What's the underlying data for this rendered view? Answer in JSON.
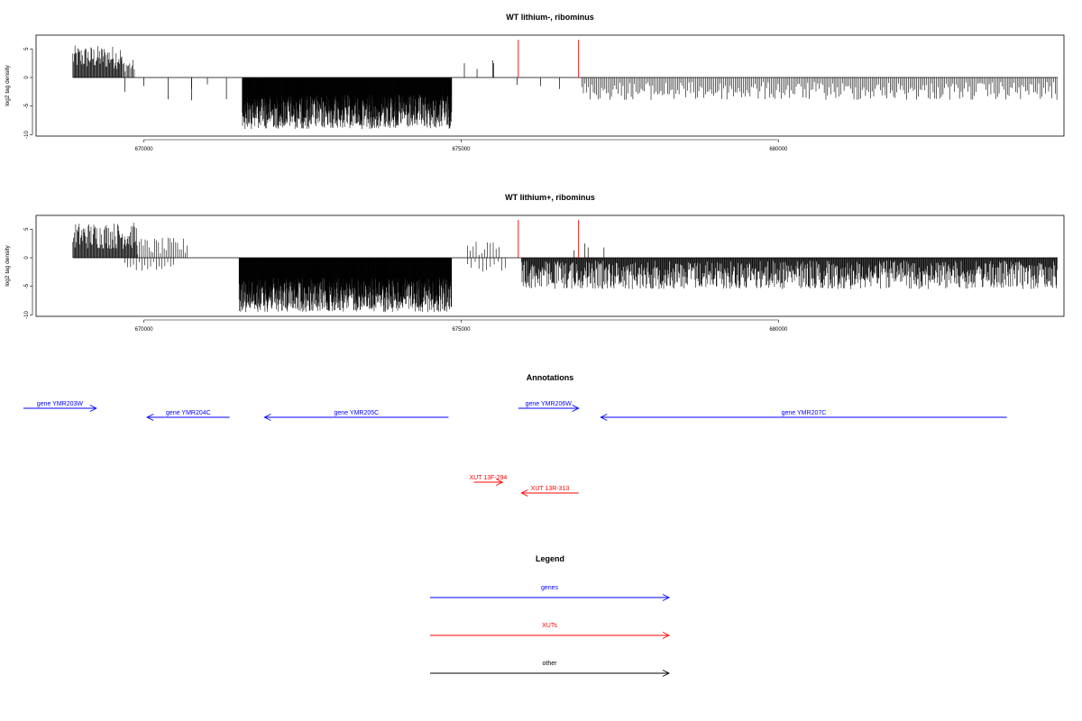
{
  "panels": [
    {
      "title": "WT lithium-, ribominus",
      "ylabel": "log2 tag density",
      "xticks": [
        670000,
        675000,
        680000
      ],
      "xtick_labels": [
        "670000",
        "675000",
        "680000"
      ],
      "yticks": [
        5,
        0,
        -5,
        -10
      ],
      "ytick_labels": [
        "5",
        "0",
        "-5",
        "-10"
      ],
      "xlim": [
        668300,
        684500
      ],
      "ylim": [
        -10,
        7.5
      ],
      "red_lines": [
        {
          "x": 675900,
          "y": 6.6
        },
        {
          "x": 676850,
          "y": 6.6
        }
      ],
      "bar_segments": [
        {
          "from": 668880,
          "to": 669650,
          "type": "pos",
          "min": 1.5,
          "max": 5.6,
          "step": 11
        },
        {
          "from": 669650,
          "to": 669850,
          "type": "pos",
          "min": 1.0,
          "max": 3.2,
          "step": 18
        },
        {
          "from": 671550,
          "to": 674850,
          "type": "neg",
          "min": 3.0,
          "max": 9.0,
          "step": 4
        },
        {
          "from": 676900,
          "to": 684400,
          "type": "neg",
          "min": 0.8,
          "max": 4.0,
          "step": 26
        }
      ],
      "bar_singles": [
        {
          "x": 669700,
          "y": -2.5
        },
        {
          "x": 670000,
          "y": -1.5
        },
        {
          "x": 670380,
          "y": -3.8
        },
        {
          "x": 670750,
          "y": -2.0
        },
        {
          "x": 670750,
          "y": -4.0
        },
        {
          "x": 671000,
          "y": -1.2
        },
        {
          "x": 671300,
          "y": -3.8
        },
        {
          "x": 675050,
          "y": 2.5
        },
        {
          "x": 675250,
          "y": 1.5
        },
        {
          "x": 675500,
          "y": 3.0
        },
        {
          "x": 675510,
          "y": 2.5
        },
        {
          "x": 675880,
          "y": -1.3
        },
        {
          "x": 676250,
          "y": -1.5
        },
        {
          "x": 676550,
          "y": -2.0
        }
      ]
    },
    {
      "title": "WT lithium+, ribominus",
      "ylabel": "log2 tag density",
      "xticks": [
        670000,
        675000,
        680000
      ],
      "xtick_labels": [
        "670000",
        "675000",
        "680000"
      ],
      "yticks": [
        5,
        0,
        -5,
        -10
      ],
      "ytick_labels": [
        "5",
        "0",
        "-5",
        "-10"
      ],
      "xlim": [
        668300,
        684500
      ],
      "ylim": [
        -10,
        7.5
      ],
      "red_lines": [
        {
          "x": 675900,
          "y": 6.6
        },
        {
          "x": 676850,
          "y": 6.6
        }
      ],
      "bar_segments": [
        {
          "from": 668880,
          "to": 669900,
          "type": "pos",
          "min": 1.5,
          "max": 6.2,
          "step": 11
        },
        {
          "from": 669900,
          "to": 670700,
          "type": "pos",
          "min": 0.5,
          "max": 3.5,
          "step": 30
        },
        {
          "from": 669700,
          "to": 670500,
          "type": "neg",
          "min": 0.5,
          "max": 3.0,
          "step": 45
        },
        {
          "from": 671500,
          "to": 674850,
          "type": "neg",
          "min": 3.5,
          "max": 9.5,
          "step": 4
        },
        {
          "from": 675100,
          "to": 675600,
          "type": "pos",
          "min": 0.3,
          "max": 2.8,
          "step": 45
        },
        {
          "from": 675100,
          "to": 675700,
          "type": "neg",
          "min": 0.5,
          "max": 2.5,
          "step": 60
        },
        {
          "from": 675950,
          "to": 684400,
          "type": "neg",
          "min": 0.5,
          "max": 5.5,
          "step": 9
        }
      ],
      "bar_singles": [
        {
          "x": 676950,
          "y": 2.5
        },
        {
          "x": 677000,
          "y": 1.8
        },
        {
          "x": 677250,
          "y": 1.8
        },
        {
          "x": 676780,
          "y": 1.3
        }
      ]
    }
  ],
  "annotations": {
    "title": "Annotations",
    "features": [
      {
        "label": "gene YMR203W",
        "kind": "genes",
        "strand": "+",
        "start": 668100,
        "end": 669250,
        "row": 0
      },
      {
        "label": "gene YMR204C",
        "kind": "genes",
        "strand": "-",
        "start": 670050,
        "end": 671350,
        "row": 1
      },
      {
        "label": "gene YMR205C",
        "kind": "genes",
        "strand": "-",
        "start": 671900,
        "end": 674800,
        "row": 1
      },
      {
        "label": "gene YMR206W",
        "kind": "genes",
        "strand": "+",
        "start": 675900,
        "end": 676850,
        "row": 0
      },
      {
        "label": "gene YMR207C",
        "kind": "genes",
        "strand": "-",
        "start": 677200,
        "end": 683600,
        "row": 1
      },
      {
        "label": "XUT 13F-294",
        "kind": "XUTs",
        "strand": "+",
        "start": 675200,
        "end": 675650,
        "row": 2
      },
      {
        "label": "XUT 13R-313",
        "kind": "XUTs",
        "strand": "-",
        "start": 675950,
        "end": 676850,
        "row": 3
      }
    ]
  },
  "legend": {
    "title": "Legend",
    "items": [
      {
        "label": "genes",
        "color": "#0000ff"
      },
      {
        "label": "XUTs",
        "color": "#ff0000"
      },
      {
        "label": "other",
        "color": "#000000"
      }
    ]
  },
  "colors": {
    "genes": "#0000ff",
    "XUTs": "#ff0000",
    "other": "#000000",
    "bars": "#000000",
    "red_marker": "#ff0000"
  }
}
